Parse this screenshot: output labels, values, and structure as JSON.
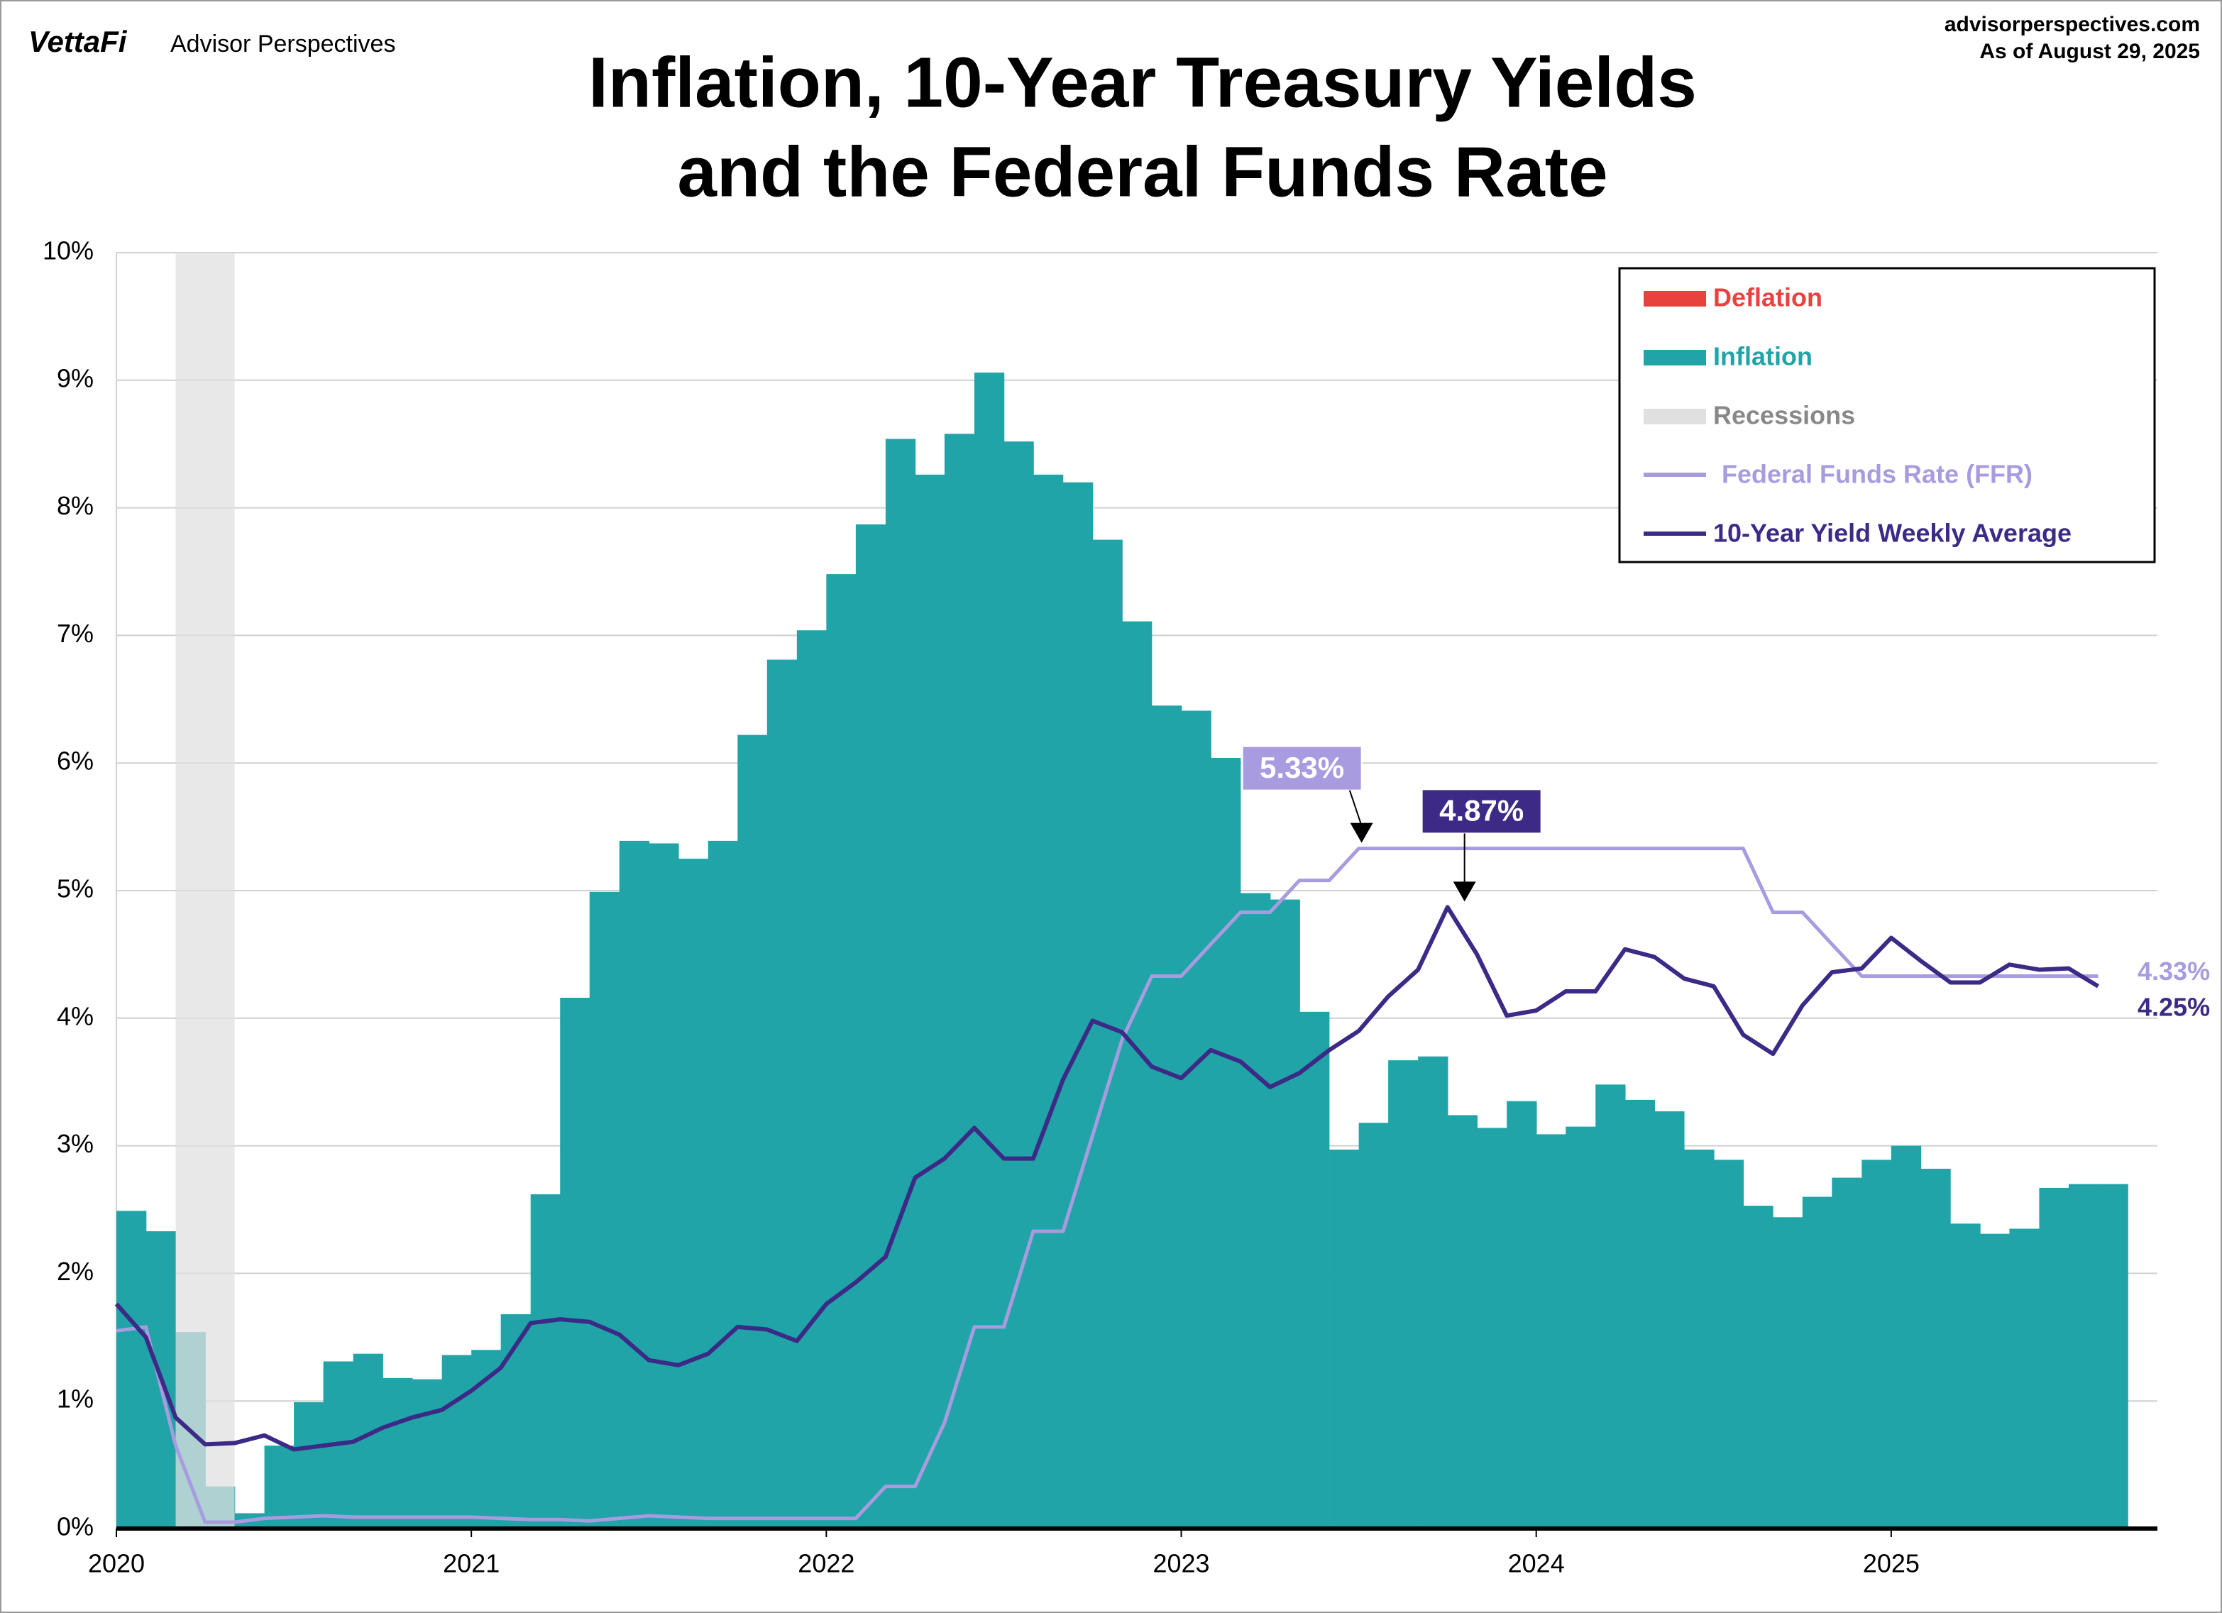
{
  "header": {
    "logo": "VettaFi",
    "brand": "Advisor Perspectives",
    "source": "advisorperspectives.com",
    "date": "As of August 29, 2025"
  },
  "chart_data": {
    "type": "combo",
    "title": [
      "Inflation, 10-Year Treasury Yields",
      "and the Federal Funds Rate"
    ],
    "x": [
      2020.0,
      2020.083,
      2020.167,
      2020.25,
      2020.333,
      2020.417,
      2020.5,
      2020.583,
      2020.667,
      2020.75,
      2020.833,
      2020.917,
      2021.0,
      2021.083,
      2021.167,
      2021.25,
      2021.333,
      2021.417,
      2021.5,
      2021.583,
      2021.667,
      2021.75,
      2021.833,
      2021.917,
      2022.0,
      2022.083,
      2022.167,
      2022.25,
      2022.333,
      2022.417,
      2022.5,
      2022.583,
      2022.667,
      2022.75,
      2022.833,
      2022.917,
      2023.0,
      2023.083,
      2023.167,
      2023.25,
      2023.333,
      2023.417,
      2023.5,
      2023.583,
      2023.667,
      2023.75,
      2023.833,
      2023.917,
      2024.0,
      2024.083,
      2024.167,
      2024.25,
      2024.333,
      2024.417,
      2024.5,
      2024.583,
      2024.667,
      2024.75,
      2024.833,
      2024.917,
      2025.0,
      2025.083,
      2025.167,
      2025.25,
      2025.333,
      2025.417,
      2025.5,
      2025.583
    ],
    "series": [
      {
        "name": "Inflation",
        "color": "#20a4a8",
        "kind": "step-area",
        "values": [
          2.49,
          2.33,
          1.54,
          0.33,
          0.12,
          0.65,
          0.99,
          1.31,
          1.37,
          1.18,
          1.17,
          1.36,
          1.4,
          1.68,
          2.62,
          4.16,
          4.99,
          5.39,
          5.37,
          5.25,
          5.39,
          6.22,
          6.81,
          7.04,
          7.48,
          7.87,
          8.54,
          8.26,
          8.58,
          9.06,
          8.52,
          8.26,
          8.2,
          7.75,
          7.11,
          6.45,
          6.41,
          6.04,
          4.98,
          4.93,
          4.05,
          2.97,
          3.18,
          3.67,
          3.7,
          3.24,
          3.14,
          3.35,
          3.09,
          3.15,
          3.48,
          3.36,
          3.27,
          2.97,
          2.89,
          2.53,
          2.44,
          2.6,
          2.75,
          2.89,
          3.0,
          2.82,
          2.39,
          2.31,
          2.35,
          2.67,
          2.7,
          2.7
        ]
      },
      {
        "name": "Federal Funds Rate (FFR)",
        "color": "#a99be0",
        "kind": "line",
        "end_label": "4.33%",
        "values": [
          1.55,
          1.58,
          0.65,
          0.05,
          0.05,
          0.08,
          0.09,
          0.1,
          0.09,
          0.09,
          0.09,
          0.09,
          0.09,
          0.08,
          0.07,
          0.07,
          0.06,
          0.08,
          0.1,
          0.09,
          0.08,
          0.08,
          0.08,
          0.08,
          0.08,
          0.08,
          0.33,
          0.33,
          0.83,
          1.58,
          1.58,
          2.33,
          2.33,
          3.08,
          3.83,
          4.33,
          4.33,
          4.58,
          4.83,
          4.83,
          5.08,
          5.08,
          5.33,
          5.33,
          5.33,
          5.33,
          5.33,
          5.33,
          5.33,
          5.33,
          5.33,
          5.33,
          5.33,
          5.33,
          5.33,
          5.33,
          4.83,
          4.83,
          4.58,
          4.33,
          4.33,
          4.33,
          4.33,
          4.33,
          4.33,
          4.33,
          4.33,
          4.33
        ]
      },
      {
        "name": "10-Year Yield Weekly Average",
        "color": "#3c2a86",
        "kind": "line",
        "end_label": "4.25%",
        "values": [
          1.76,
          1.5,
          0.87,
          0.66,
          0.67,
          0.73,
          0.62,
          0.65,
          0.68,
          0.79,
          0.87,
          0.93,
          1.08,
          1.26,
          1.61,
          1.64,
          1.62,
          1.52,
          1.32,
          1.28,
          1.37,
          1.58,
          1.56,
          1.47,
          1.76,
          1.93,
          2.13,
          2.75,
          2.9,
          3.14,
          2.9,
          2.9,
          3.52,
          3.98,
          3.89,
          3.62,
          3.53,
          3.75,
          3.66,
          3.46,
          3.57,
          3.75,
          3.9,
          4.17,
          4.38,
          4.87,
          4.5,
          4.02,
          4.06,
          4.21,
          4.21,
          4.54,
          4.48,
          4.31,
          4.25,
          3.87,
          3.72,
          4.1,
          4.36,
          4.39,
          4.63,
          4.45,
          4.28,
          4.28,
          4.42,
          4.38,
          4.39,
          4.25
        ]
      }
    ],
    "deflation": {
      "name": "Deflation",
      "color": "#e8423f"
    },
    "recessions": {
      "name": "Recessions",
      "color": "#e0e0e0",
      "spans": [
        [
          2020.167,
          2020.333
        ]
      ]
    },
    "annotations": [
      {
        "series": 1,
        "index": 42,
        "label": "5.33%"
      },
      {
        "series": 2,
        "index": 45,
        "label": "4.87%"
      }
    ],
    "xlim": [
      2020,
      2025.75
    ],
    "xticks": [
      2020,
      2021,
      2022,
      2023,
      2024,
      2025
    ],
    "ylim": [
      0,
      10
    ],
    "yticks": [
      {
        "value": 0,
        "label": "0%"
      },
      {
        "value": 1,
        "label": "1%"
      },
      {
        "value": 2,
        "label": "2%"
      },
      {
        "value": 3,
        "label": "3%"
      },
      {
        "value": 4,
        "label": "4%"
      },
      {
        "value": 5,
        "label": "5%"
      },
      {
        "value": 6,
        "label": "6%"
      },
      {
        "value": 7,
        "label": "7%"
      },
      {
        "value": 8,
        "label": "8%"
      },
      {
        "value": 9,
        "label": "9%"
      },
      {
        "value": 10,
        "label": "10%"
      }
    ],
    "grid": true,
    "legend": "upper right"
  }
}
